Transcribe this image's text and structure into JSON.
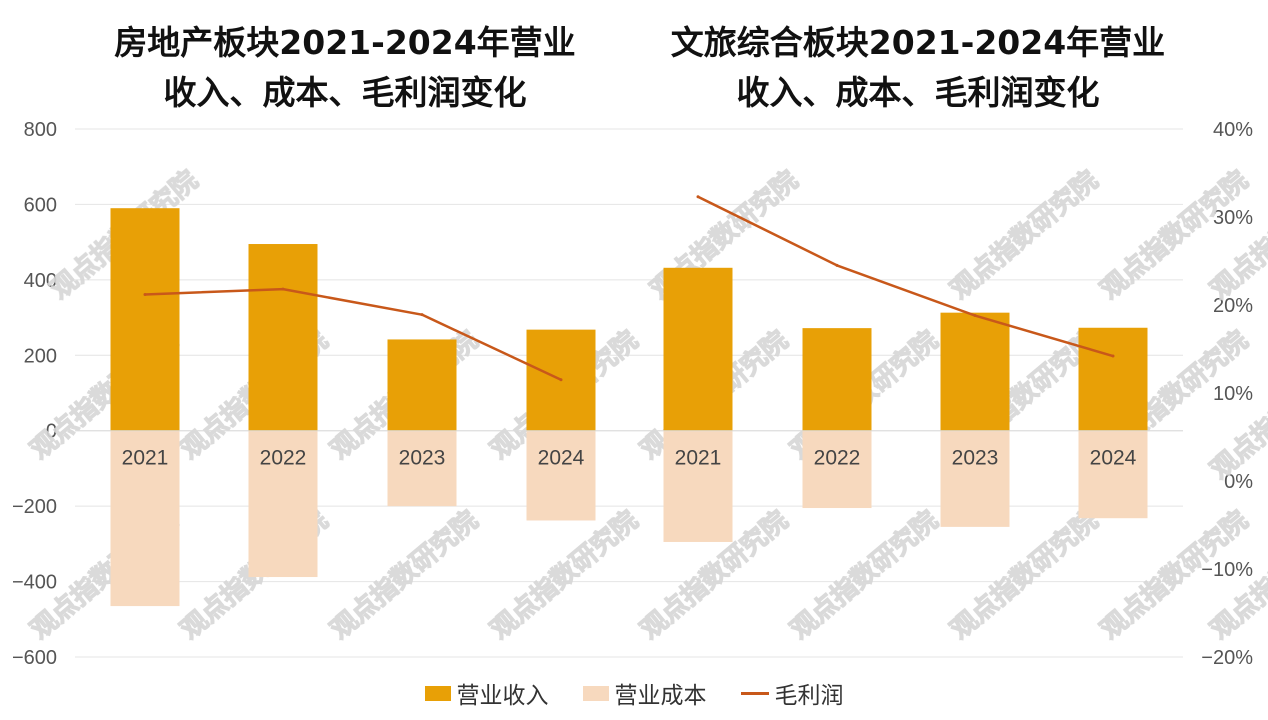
{
  "watermark": "观点指数研究院",
  "legend": {
    "revenue": "营业收入",
    "cost": "营业成本",
    "margin": "毛利润"
  },
  "colors": {
    "revenue": "#E8A006",
    "cost": "#F7D9BE",
    "margin": "#C8581A",
    "grid": "#E4E4E4"
  },
  "chart_data": [
    {
      "type": "bar",
      "title_line1": "房地产板块2021-2024年营业",
      "title_line2": "收入、成本、毛利润变化",
      "categories": [
        "2021",
        "2022",
        "2023",
        "2024"
      ],
      "series": [
        {
          "name": "营业收入",
          "axis": "left",
          "values": [
            590,
            495,
            242,
            268
          ]
        },
        {
          "name": "营业成本",
          "axis": "left",
          "values": [
            -465,
            -388,
            -200,
            -238
          ]
        },
        {
          "name": "毛利润",
          "type": "line",
          "axis": "right",
          "values": [
            21.2,
            21.8,
            18.9,
            11.5
          ]
        }
      ],
      "ylim_left": [
        -600,
        800
      ],
      "ylim_right": [
        -20,
        40
      ]
    },
    {
      "type": "bar",
      "title_line1": "文旅综合板块2021-2024年营业",
      "title_line2": "收入、成本、毛利润变化",
      "categories": [
        "2021",
        "2022",
        "2023",
        "2024"
      ],
      "series": [
        {
          "name": "营业收入",
          "axis": "left",
          "values": [
            432,
            272,
            313,
            273
          ]
        },
        {
          "name": "营业成本",
          "axis": "left",
          "values": [
            -295,
            -205,
            -255,
            -232
          ]
        },
        {
          "name": "毛利润",
          "type": "line",
          "axis": "right",
          "values": [
            32.3,
            24.5,
            18.8,
            14.2
          ]
        }
      ],
      "ylim_left": [
        -600,
        800
      ],
      "ylim_right": [
        -20,
        40
      ]
    }
  ],
  "axes": {
    "left_ticks": [
      "800",
      "600",
      "400",
      "200",
      "0",
      "−200",
      "−400",
      "−600"
    ],
    "left_values": [
      800,
      600,
      400,
      200,
      0,
      -200,
      -400,
      -600
    ],
    "right_ticks": [
      "40%",
      "30%",
      "20%",
      "10%",
      "0%",
      "−10%",
      "−20%"
    ],
    "right_values": [
      40,
      30,
      20,
      10,
      0,
      -10,
      -20
    ]
  }
}
